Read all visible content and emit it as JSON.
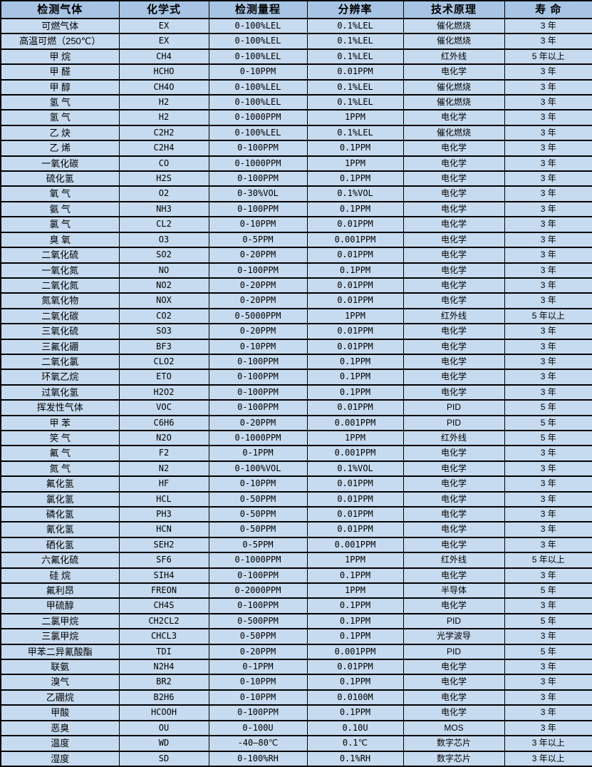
{
  "colors": {
    "header_bg": "#a8c4e4",
    "row_bg": "#c7dbf0",
    "border": "#000000",
    "text": "#000000"
  },
  "table": {
    "columns": [
      "检测气体",
      "化学式",
      "检测量程",
      "分辨率",
      "技术原理",
      "寿 命"
    ],
    "rows": [
      {
        "gas": "可燃气体",
        "formula": "EX",
        "range": "0-100%LEL",
        "resolution": "0.1%LEL",
        "principle": "催化燃烧",
        "lifespan": "3 年"
      },
      {
        "gas": "高温可燃（250℃）",
        "formula": "EX",
        "range": "0-100%LEL",
        "resolution": "0.1%LEL",
        "principle": "催化燃烧",
        "lifespan": "3 年"
      },
      {
        "gas": "甲 烷",
        "formula": "CH4",
        "range": "0-100%LEL",
        "resolution": "0.1%LEL",
        "principle": "红外线",
        "lifespan": "5 年以上"
      },
      {
        "gas": "甲 醛",
        "formula": "HCHO",
        "range": "0-10PPM",
        "resolution": "0.01PPM",
        "principle": "电化学",
        "lifespan": "3 年"
      },
      {
        "gas": "甲 醇",
        "formula": "CH4O",
        "range": "0-100%LEL",
        "resolution": "0.1%LEL",
        "principle": "催化燃烧",
        "lifespan": "3 年"
      },
      {
        "gas": "氢 气",
        "formula": "H2",
        "range": "0-100%LEL",
        "resolution": "0.1%LEL",
        "principle": "催化燃烧",
        "lifespan": "3 年"
      },
      {
        "gas": "氢 气",
        "formula": "H2",
        "range": "0-1000PPM",
        "resolution": "1PPM",
        "principle": "电化学",
        "lifespan": "3 年"
      },
      {
        "gas": "乙 炔",
        "formula": "C2H2",
        "range": "0-100%LEL",
        "resolution": "0.1%LEL",
        "principle": "催化燃烧",
        "lifespan": "3 年"
      },
      {
        "gas": "乙 烯",
        "formula": "C2H4",
        "range": "0-100PPM",
        "resolution": "0.1PPM",
        "principle": "电化学",
        "lifespan": "3 年"
      },
      {
        "gas": "一氧化碳",
        "formula": "CO",
        "range": "0-1000PPM",
        "resolution": "1PPM",
        "principle": "电化学",
        "lifespan": "3 年"
      },
      {
        "gas": "硫化氢",
        "formula": "H2S",
        "range": "0-100PPM",
        "resolution": "0.1PPM",
        "principle": "电化学",
        "lifespan": "3 年"
      },
      {
        "gas": "氧 气",
        "formula": "O2",
        "range": "0-30%VOL",
        "resolution": "0.1%VOL",
        "principle": "电化学",
        "lifespan": "3 年"
      },
      {
        "gas": "氨 气",
        "formula": "NH3",
        "range": "0-100PPM",
        "resolution": "0.1PPM",
        "principle": "电化学",
        "lifespan": "3 年"
      },
      {
        "gas": "氯 气",
        "formula": "CL2",
        "range": "0-10PPM",
        "resolution": "0.01PPM",
        "principle": "电化学",
        "lifespan": "3 年"
      },
      {
        "gas": "臭 氧",
        "formula": "O3",
        "range": "0-5PPM",
        "resolution": "0.001PPM",
        "principle": "电化学",
        "lifespan": "3 年"
      },
      {
        "gas": "二氧化硫",
        "formula": "SO2",
        "range": "0-20PPM",
        "resolution": "0.01PPM",
        "principle": "电化学",
        "lifespan": "3 年"
      },
      {
        "gas": "一氧化氮",
        "formula": "NO",
        "range": "0-100PPM",
        "resolution": "0.1PPM",
        "principle": "电化学",
        "lifespan": "3 年"
      },
      {
        "gas": "二氧化氮",
        "formula": "NO2",
        "range": "0-20PPM",
        "resolution": "0.01PPM",
        "principle": "电化学",
        "lifespan": "3 年"
      },
      {
        "gas": "氮氧化物",
        "formula": "NOX",
        "range": "0-20PPM",
        "resolution": "0.01PPM",
        "principle": "电化学",
        "lifespan": "3 年"
      },
      {
        "gas": "二氧化碳",
        "formula": "CO2",
        "range": "0-5000PPM",
        "resolution": "1PPM",
        "principle": "红外线",
        "lifespan": "5 年以上"
      },
      {
        "gas": "三氧化硫",
        "formula": "SO3",
        "range": "0-20PPM",
        "resolution": "0.01PPM",
        "principle": "电化学",
        "lifespan": "3 年"
      },
      {
        "gas": "三氟化硼",
        "formula": "BF3",
        "range": "0-10PPM",
        "resolution": "0.01PPM",
        "principle": "电化学",
        "lifespan": "3 年"
      },
      {
        "gas": "二氧化氯",
        "formula": "CLO2",
        "range": "0-100PPM",
        "resolution": "0.1PPM",
        "principle": "电化学",
        "lifespan": "3 年"
      },
      {
        "gas": "环氧乙烷",
        "formula": "ETO",
        "range": "0-100PPM",
        "resolution": "0.1PPM",
        "principle": "电化学",
        "lifespan": "3 年"
      },
      {
        "gas": "过氧化氢",
        "formula": "H2O2",
        "range": "0-100PPM",
        "resolution": "0.1PPM",
        "principle": "电化学",
        "lifespan": "3 年"
      },
      {
        "gas": "挥发性气体",
        "formula": "VOC",
        "range": "0-100PPM",
        "resolution": "0.01PPM",
        "principle": "PID",
        "lifespan": "5 年"
      },
      {
        "gas": "甲 苯",
        "formula": "C6H6",
        "range": "0-20PPM",
        "resolution": "0.001PPM",
        "principle": "PID",
        "lifespan": "5 年"
      },
      {
        "gas": "笑 气",
        "formula": "N2O",
        "range": "0-1000PPM",
        "resolution": "1PPM",
        "principle": "红外线",
        "lifespan": "5 年"
      },
      {
        "gas": "氟 气",
        "formula": "F2",
        "range": "0-1PPM",
        "resolution": "0.001PPM",
        "principle": "电化学",
        "lifespan": "3 年"
      },
      {
        "gas": "氮 气",
        "formula": "N2",
        "range": "0-100%VOL",
        "resolution": "0.1%VOL",
        "principle": "电化学",
        "lifespan": "3 年"
      },
      {
        "gas": "氟化氢",
        "formula": "HF",
        "range": "0-10PPM",
        "resolution": "0.01PPM",
        "principle": "电化学",
        "lifespan": "3 年"
      },
      {
        "gas": "氯化氢",
        "formula": "HCL",
        "range": "0-50PPM",
        "resolution": "0.01PPM",
        "principle": "电化学",
        "lifespan": "3 年"
      },
      {
        "gas": "磷化氢",
        "formula": "PH3",
        "range": "0-50PPM",
        "resolution": "0.01PPM",
        "principle": "电化学",
        "lifespan": "3 年"
      },
      {
        "gas": "氰化氢",
        "formula": "HCN",
        "range": "0-50PPM",
        "resolution": "0.01PPM",
        "principle": "电化学",
        "lifespan": "3 年"
      },
      {
        "gas": "硒化氢",
        "formula": "SEH2",
        "range": "0-5PPM",
        "resolution": "0.001PPM",
        "principle": "电化学",
        "lifespan": "3 年"
      },
      {
        "gas": "六氟化硫",
        "formula": "SF6",
        "range": "0-1000PPM",
        "resolution": "1PPM",
        "principle": "红外线",
        "lifespan": "5 年以上"
      },
      {
        "gas": "硅 烷",
        "formula": "SIH4",
        "range": "0-100PPM",
        "resolution": "0.1PPM",
        "principle": "电化学",
        "lifespan": "3 年"
      },
      {
        "gas": "氟利昂",
        "formula": "FREON",
        "range": "0-2000PPM",
        "resolution": "1PPM",
        "principle": "半导体",
        "lifespan": "5 年"
      },
      {
        "gas": "甲硫醇",
        "formula": "CH4S",
        "range": "0-100PPM",
        "resolution": "0.1PPM",
        "principle": "电化学",
        "lifespan": "3 年"
      },
      {
        "gas": "二氯甲烷",
        "formula": "CH2CL2",
        "range": "0-500PPM",
        "resolution": "0.1PPM",
        "principle": "PID",
        "lifespan": "5 年"
      },
      {
        "gas": "三氯甲烷",
        "formula": "CHCL3",
        "range": "0-50PPM",
        "resolution": "0.1PPM",
        "principle": "光学波导",
        "lifespan": "3 年"
      },
      {
        "gas": "甲苯二异氰酸酯",
        "formula": "TDI",
        "range": "0-20PPM",
        "resolution": "0.001PPM",
        "principle": "PID",
        "lifespan": "5 年"
      },
      {
        "gas": "联氨",
        "formula": "N2H4",
        "range": "0-1PPM",
        "resolution": "0.01PPM",
        "principle": "电化学",
        "lifespan": "3 年"
      },
      {
        "gas": "溴气",
        "formula": "BR2",
        "range": "0-10PPM",
        "resolution": "0.1PPM",
        "principle": "电化学",
        "lifespan": "3 年"
      },
      {
        "gas": "乙硼烷",
        "formula": "B2H6",
        "range": "0-10PPM",
        "resolution": "0.0100M",
        "principle": "电化学",
        "lifespan": "3 年"
      },
      {
        "gas": "甲酸",
        "formula": "HCOOH",
        "range": "0-100PPM",
        "resolution": "0.1PPM",
        "principle": "电化学",
        "lifespan": "3 年"
      },
      {
        "gas": "恶臭",
        "formula": "OU",
        "range": "0-100U",
        "resolution": "0.10U",
        "principle": "MOS",
        "lifespan": "3 年"
      },
      {
        "gas": "温度",
        "formula": "WD",
        "range": "-40—80℃",
        "resolution": "0.1℃",
        "principle": "数字芯片",
        "lifespan": "3 年以上"
      },
      {
        "gas": "湿度",
        "formula": "SD",
        "range": "0-100%RH",
        "resolution": "0.1%RH",
        "principle": "数字芯片",
        "lifespan": "3 年以上"
      }
    ]
  }
}
